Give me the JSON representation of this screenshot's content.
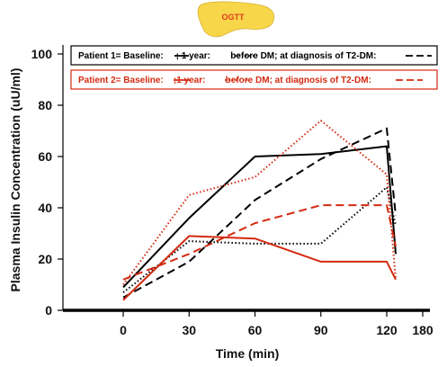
{
  "badge": {
    "label": "OGTT",
    "bg_color": "#f7d64a",
    "text_color": "#e23a1a"
  },
  "chart_data": {
    "type": "line",
    "xlabel": "Time (min)",
    "ylabel": "Plasma Insulin Concentration (uU/ml)",
    "xlim": [
      -45,
      180
    ],
    "ylim": [
      0,
      100
    ],
    "x_ticks": [
      0,
      30,
      60,
      90,
      120,
      180
    ],
    "y_ticks": [
      0,
      20,
      40,
      60,
      80,
      100
    ],
    "grid": false,
    "legend_placement": "top",
    "legends": [
      {
        "text": "Patient 1= Baseline:     ; 1 year:        before DM; at diagnosis of T2-DM:",
        "color": "#000000"
      },
      {
        "text": "Patient 2= Baseline:    ;1 year:        before DM; at diagnosis of T2-DM:",
        "color": "#d42a10"
      }
    ],
    "series": [
      {
        "patient": 1,
        "stage": "baseline",
        "color": "#000000",
        "dash": "solid",
        "x": [
          0,
          30,
          60,
          90,
          120,
          135
        ],
        "y": [
          9,
          36,
          60,
          61,
          64,
          22
        ]
      },
      {
        "patient": 1,
        "stage": "1 year before DM",
        "color": "#000000",
        "dash": "dotted",
        "x": [
          0,
          30,
          60,
          90,
          120,
          135
        ],
        "y": [
          7,
          27,
          26,
          26,
          48,
          33
        ]
      },
      {
        "patient": 1,
        "stage": "at diagnosis of T2-DM",
        "color": "#000000",
        "dash": "dashed",
        "x": [
          0,
          30,
          60,
          90,
          120,
          135
        ],
        "y": [
          5,
          19,
          43,
          59,
          71,
          37
        ]
      },
      {
        "patient": 2,
        "stage": "baseline",
        "color": "#d42a10",
        "dash": "solid",
        "x": [
          0,
          30,
          60,
          90,
          120,
          135
        ],
        "y": [
          4,
          29,
          28,
          19,
          19,
          12
        ]
      },
      {
        "patient": 2,
        "stage": "1 year before DM",
        "color": "#d42a10",
        "dash": "dotted",
        "x": [
          0,
          30,
          60,
          90,
          120,
          135
        ],
        "y": [
          10,
          45,
          52,
          74,
          53,
          12
        ]
      },
      {
        "patient": 2,
        "stage": "at diagnosis of T2-DM",
        "color": "#d42a10",
        "dash": "dashed",
        "x": [
          0,
          30,
          60,
          90,
          120,
          135
        ],
        "y": [
          12,
          22,
          34,
          41,
          41,
          25
        ]
      }
    ]
  }
}
